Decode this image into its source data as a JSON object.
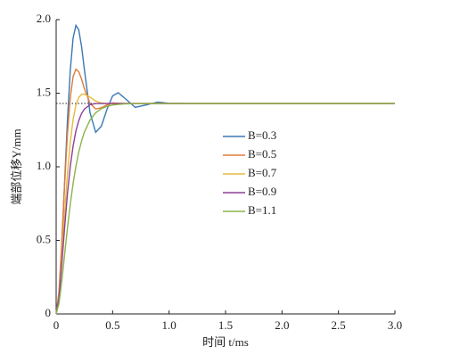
{
  "chart_data": {
    "type": "line",
    "x_label": "时间 t/ms",
    "y_label": "端部位移Y/mm",
    "x": [
      0,
      0.025,
      0.05,
      0.075,
      0.1,
      0.125,
      0.15,
      0.175,
      0.2,
      0.225,
      0.25,
      0.3,
      0.35,
      0.4,
      0.45,
      0.5,
      0.55,
      0.6,
      0.7,
      0.8,
      0.9,
      1.0,
      1.2,
      1.5,
      2.0,
      2.5,
      3.0
    ],
    "series": [
      {
        "name": "B=0.3",
        "color": "#3a78b5",
        "values": [
          0,
          0.134,
          0.469,
          0.897,
          1.317,
          1.656,
          1.875,
          1.961,
          1.931,
          1.817,
          1.66,
          1.367,
          1.234,
          1.276,
          1.39,
          1.482,
          1.503,
          1.471,
          1.404,
          1.421,
          1.44,
          1.431,
          1.43,
          1.43,
          1.43,
          1.43,
          1.43
        ]
      },
      {
        "name": "B=0.5",
        "color": "#e07b39",
        "values": [
          0,
          0.153,
          0.493,
          0.881,
          1.224,
          1.47,
          1.613,
          1.663,
          1.646,
          1.596,
          1.531,
          1.43,
          1.393,
          1.401,
          1.421,
          1.434,
          1.432,
          1.43,
          1.43,
          1.43,
          1.43,
          1.43,
          1.43,
          1.43,
          1.43,
          1.43,
          1.43
        ]
      },
      {
        "name": "B=0.7",
        "color": "#e6bb3c",
        "values": [
          0,
          0.12,
          0.383,
          0.682,
          0.952,
          1.167,
          1.321,
          1.419,
          1.471,
          1.493,
          1.494,
          1.473,
          1.447,
          1.433,
          1.43,
          1.43,
          1.43,
          1.43,
          1.43,
          1.43,
          1.43,
          1.43,
          1.43,
          1.43,
          1.43,
          1.43,
          1.43
        ]
      },
      {
        "name": "B=0.9",
        "color": "#8e3e99",
        "values": [
          0,
          0.11,
          0.339,
          0.589,
          0.817,
          1.001,
          1.141,
          1.244,
          1.314,
          1.362,
          1.392,
          1.422,
          1.43,
          1.43,
          1.43,
          1.43,
          1.43,
          1.43,
          1.43,
          1.43,
          1.43,
          1.43,
          1.43,
          1.43,
          1.43,
          1.43,
          1.43
        ]
      },
      {
        "name": "B=1.1",
        "color": "#8db34a",
        "values": [
          0,
          0.07,
          0.223,
          0.404,
          0.584,
          0.746,
          0.887,
          1.004,
          1.1,
          1.175,
          1.236,
          1.318,
          1.367,
          1.395,
          1.411,
          1.42,
          1.424,
          1.427,
          1.429,
          1.43,
          1.43,
          1.43,
          1.43,
          1.43,
          1.43,
          1.43,
          1.43
        ]
      }
    ],
    "reference_line": {
      "y": 1.43,
      "x": [
        0,
        0.37
      ]
    },
    "xlim": [
      0,
      3
    ],
    "xticks": [
      0,
      0.5,
      {
        "value": 1,
        "label": "1.0"
      },
      1.5,
      {
        "value": 2,
        "label": "2.0"
      },
      2.5,
      {
        "value": 3,
        "label": "3.0"
      }
    ],
    "ylim": [
      0,
      2
    ],
    "yticks": [
      0,
      0.5,
      {
        "value": 1,
        "label": "1.0"
      },
      1.5,
      {
        "value": 2,
        "label": "2.0"
      }
    ],
    "grid": false,
    "legend_position": "center"
  }
}
